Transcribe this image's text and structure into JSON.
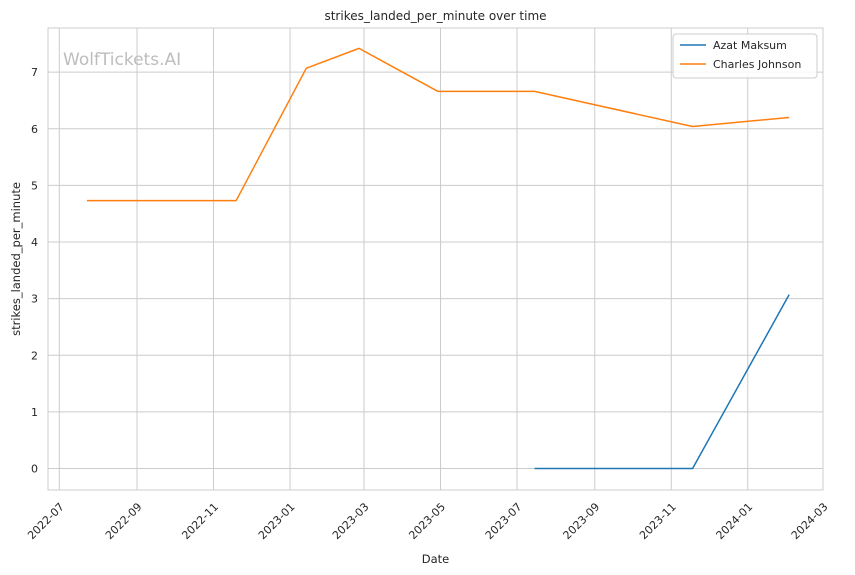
{
  "chart_data": {
    "type": "line",
    "title": "strikes_landed_per_minute over time",
    "xlabel": "Date",
    "ylabel": "strikes_landed_per_minute",
    "watermark": "WolfTickets.AI",
    "xlim": [
      "2022-06-22",
      "2024-03-01"
    ],
    "ylim": [
      -0.38,
      7.78
    ],
    "x_ticks": [
      "2022-07-01",
      "2022-09-01",
      "2022-11-01",
      "2023-01-01",
      "2023-03-01",
      "2023-05-01",
      "2023-07-01",
      "2023-09-01",
      "2023-11-01",
      "2024-01-01",
      "2024-03-01"
    ],
    "x_tick_labels": [
      "2022-07",
      "2022-09",
      "2022-11",
      "2023-01",
      "2023-03",
      "2023-05",
      "2023-07",
      "2023-09",
      "2023-11",
      "2024-01",
      "2024-03"
    ],
    "y_ticks": [
      0,
      1,
      2,
      3,
      4,
      5,
      6,
      7
    ],
    "grid": true,
    "legend_position": "top-right",
    "series": [
      {
        "name": "Azat Maksum",
        "color": "#1f77b4",
        "points": [
          {
            "x": "2023-07-15",
            "y": 0.0
          },
          {
            "x": "2023-11-18",
            "y": 0.0
          },
          {
            "x": "2024-02-03",
            "y": 3.07
          }
        ]
      },
      {
        "name": "Charles Johnson",
        "color": "#ff7f0e",
        "points": [
          {
            "x": "2022-07-23",
            "y": 4.73
          },
          {
            "x": "2022-11-19",
            "y": 4.73
          },
          {
            "x": "2023-01-14",
            "y": 7.07
          },
          {
            "x": "2023-02-25",
            "y": 7.42
          },
          {
            "x": "2023-04-29",
            "y": 6.66
          },
          {
            "x": "2023-07-15",
            "y": 6.66
          },
          {
            "x": "2023-11-18",
            "y": 6.04
          },
          {
            "x": "2024-02-03",
            "y": 6.2
          }
        ]
      }
    ]
  }
}
